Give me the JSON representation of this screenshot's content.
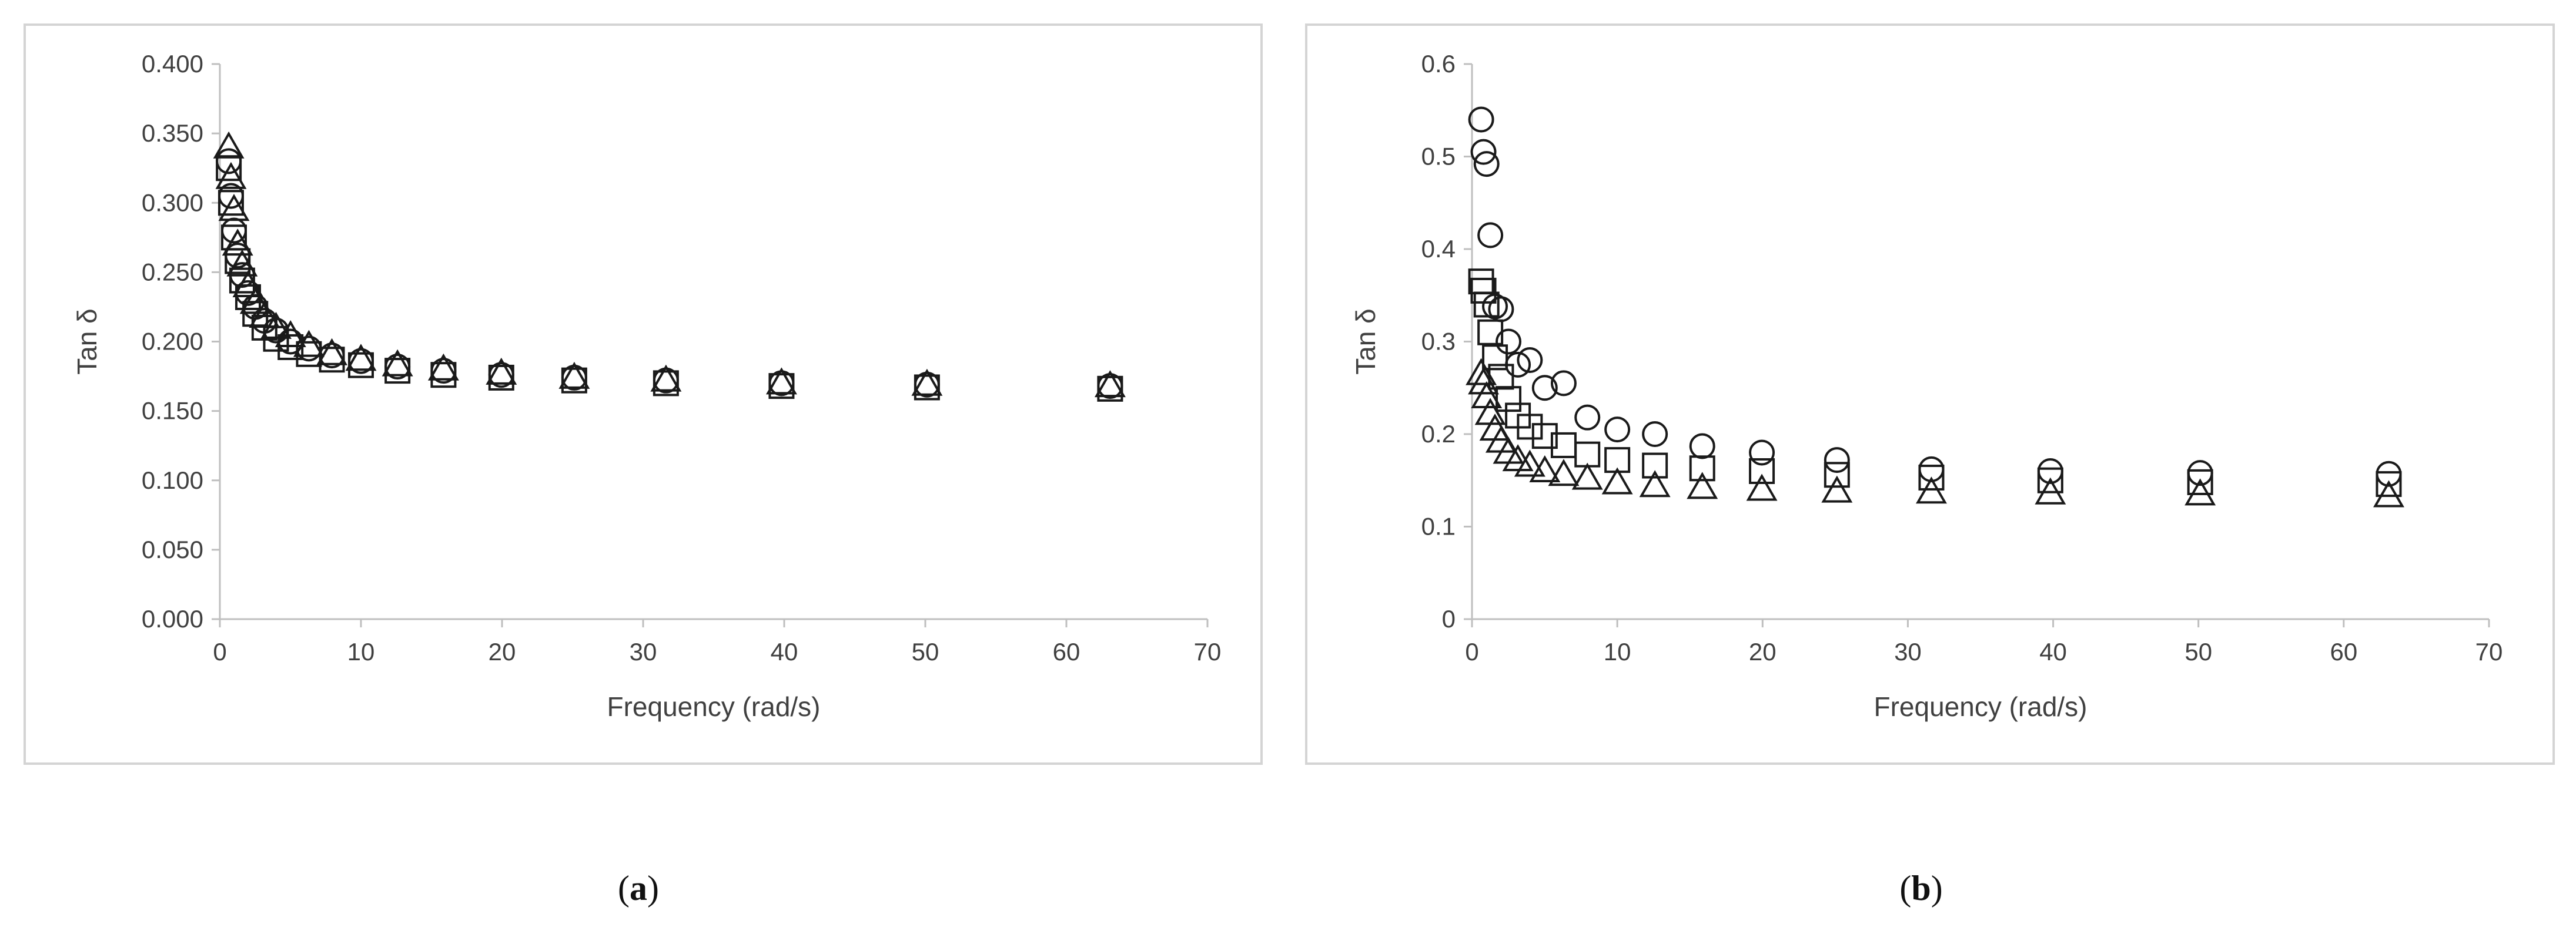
{
  "captions": {
    "a": "a",
    "b": "b"
  },
  "chart_data": [
    {
      "type": "scatter",
      "panel": "a",
      "xlabel": "Frequency (rad/s)",
      "ylabel": "Tan δ",
      "xlim": [
        0,
        70
      ],
      "ylim": [
        0,
        0.4
      ],
      "xticks": [
        "0",
        "10",
        "20",
        "30",
        "40",
        "50",
        "60",
        "70"
      ],
      "yticks": [
        "0.000",
        "0.050",
        "0.100",
        "0.150",
        "0.200",
        "0.250",
        "0.300",
        "0.350",
        "0.400"
      ],
      "grid": false,
      "series": [
        {
          "marker": "circle",
          "x": [
            0.63,
            0.79,
            1.0,
            1.26,
            1.58,
            2.0,
            2.51,
            3.16,
            3.98,
            5.01,
            6.31,
            7.94,
            10.0,
            12.59,
            15.85,
            19.95,
            25.12,
            31.62,
            39.81,
            50.12,
            63.1
          ],
          "y": [
            0.33,
            0.305,
            0.28,
            0.262,
            0.248,
            0.235,
            0.225,
            0.215,
            0.208,
            0.2,
            0.195,
            0.19,
            0.186,
            0.182,
            0.179,
            0.176,
            0.174,
            0.172,
            0.17,
            0.169,
            0.168
          ]
        },
        {
          "marker": "square",
          "x": [
            0.63,
            0.79,
            1.0,
            1.26,
            1.58,
            2.0,
            2.51,
            3.16,
            3.98,
            5.01,
            6.31,
            7.94,
            10.0,
            12.59,
            15.85,
            19.95,
            25.12,
            31.62,
            39.81,
            50.12,
            63.1
          ],
          "y": [
            0.325,
            0.3,
            0.275,
            0.258,
            0.244,
            0.232,
            0.22,
            0.21,
            0.202,
            0.196,
            0.191,
            0.187,
            0.183,
            0.179,
            0.176,
            0.174,
            0.172,
            0.17,
            0.168,
            0.167,
            0.166
          ]
        },
        {
          "marker": "triangle",
          "x": [
            0.63,
            0.79,
            1.0,
            1.26,
            1.58,
            2.0,
            2.51,
            3.16,
            3.98,
            5.01,
            6.31,
            7.94,
            10.0,
            12.59,
            15.85,
            19.95,
            25.12,
            31.62,
            39.81,
            50.12,
            63.1
          ],
          "y": [
            0.34,
            0.318,
            0.295,
            0.27,
            0.255,
            0.24,
            0.228,
            0.218,
            0.21,
            0.204,
            0.197,
            0.191,
            0.187,
            0.183,
            0.18,
            0.177,
            0.174,
            0.172,
            0.17,
            0.169,
            0.168
          ]
        }
      ]
    },
    {
      "type": "scatter",
      "panel": "b",
      "xlabel": "Frequency (rad/s)",
      "ylabel": "Tan δ",
      "xlim": [
        0,
        70
      ],
      "ylim": [
        0,
        0.6
      ],
      "xticks": [
        "0",
        "10",
        "20",
        "30",
        "40",
        "50",
        "60",
        "70"
      ],
      "yticks": [
        "0",
        "0.1",
        "0.2",
        "0.3",
        "0.4",
        "0.5",
        "0.6"
      ],
      "grid": false,
      "series": [
        {
          "marker": "circle",
          "x": [
            0.63,
            0.79,
            1.0,
            1.26,
            1.58,
            2.0,
            2.51,
            3.16,
            3.98,
            5.01,
            6.31,
            7.94,
            10.0,
            12.59,
            15.85,
            19.95,
            25.12,
            31.62,
            39.81,
            50.12,
            63.1
          ],
          "y": [
            0.54,
            0.505,
            0.492,
            0.415,
            0.338,
            0.335,
            0.3,
            0.275,
            0.28,
            0.25,
            0.255,
            0.218,
            0.205,
            0.2,
            0.187,
            0.18,
            0.172,
            0.162,
            0.16,
            0.158,
            0.157
          ]
        },
        {
          "marker": "square",
          "x": [
            0.63,
            0.79,
            1.0,
            1.26,
            1.58,
            2.0,
            2.51,
            3.16,
            3.98,
            5.01,
            6.31,
            7.94,
            10.0,
            12.59,
            15.85,
            19.95,
            25.12,
            31.62,
            39.81,
            50.12,
            63.1
          ],
          "y": [
            0.365,
            0.355,
            0.34,
            0.31,
            0.283,
            0.262,
            0.238,
            0.22,
            0.208,
            0.198,
            0.188,
            0.178,
            0.172,
            0.166,
            0.163,
            0.16,
            0.156,
            0.153,
            0.15,
            0.148,
            0.146
          ]
        },
        {
          "marker": "triangle",
          "x": [
            0.63,
            0.79,
            1.0,
            1.26,
            1.58,
            2.0,
            2.51,
            3.16,
            3.98,
            5.01,
            6.31,
            7.94,
            10.0,
            12.59,
            15.85,
            19.95,
            25.12,
            31.62,
            39.81,
            50.12,
            63.1
          ],
          "y": [
            0.265,
            0.255,
            0.24,
            0.222,
            0.205,
            0.192,
            0.18,
            0.172,
            0.166,
            0.16,
            0.156,
            0.152,
            0.147,
            0.144,
            0.142,
            0.14,
            0.138,
            0.137,
            0.136,
            0.135,
            0.133
          ]
        }
      ]
    }
  ]
}
